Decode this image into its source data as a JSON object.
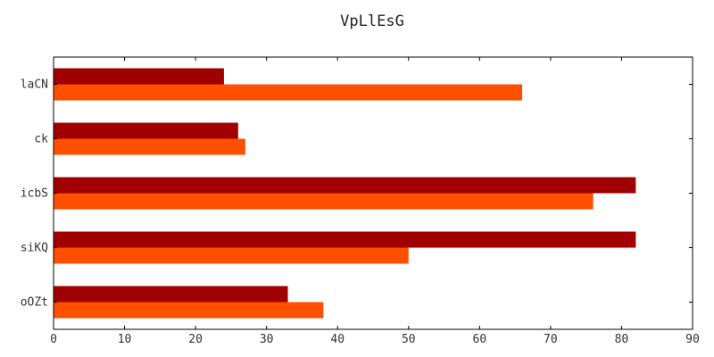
{
  "chart_data": {
    "type": "bar",
    "orientation": "horizontal",
    "title": "VpLlEsG",
    "xlabel": "",
    "ylabel": "",
    "categories": [
      "laCN",
      "ck",
      "icbS",
      "siKQ",
      "oOZt"
    ],
    "series": [
      {
        "values": [
          24,
          26,
          82,
          82,
          33
        ],
        "color": "#a00000"
      },
      {
        "values": [
          66,
          27,
          76,
          50,
          38
        ],
        "color": "#ff5000"
      }
    ],
    "xlim": [
      0,
      90
    ],
    "xticks": [
      0,
      10,
      20,
      30,
      40,
      50,
      60,
      70,
      80,
      90
    ],
    "grid": false
  }
}
